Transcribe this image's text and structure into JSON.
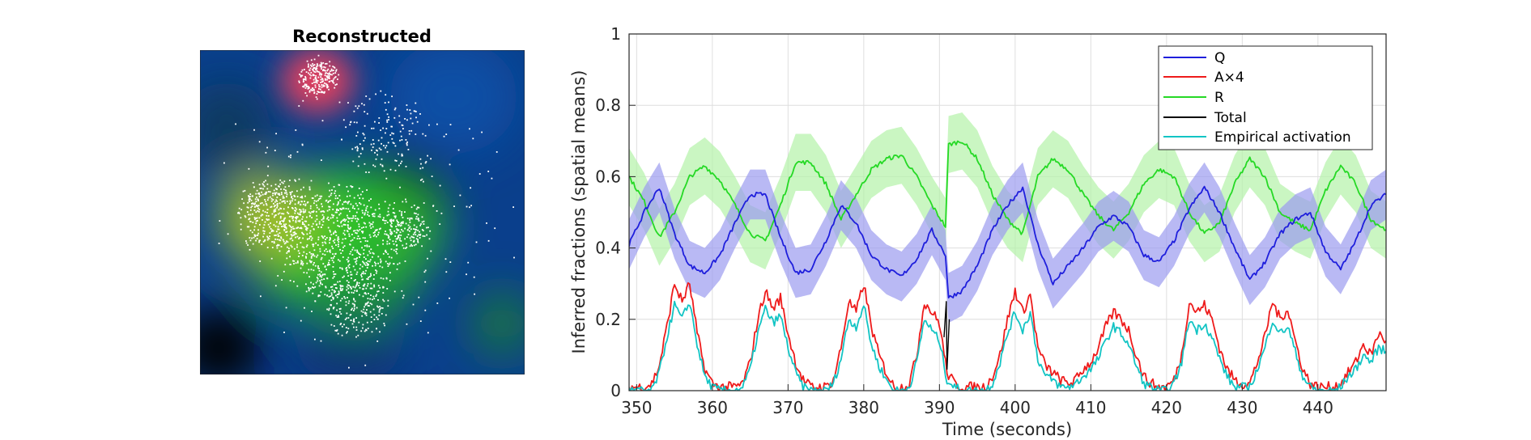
{
  "colors": {
    "Q": "#1f1fdc",
    "Q_band": "#9b9bf0",
    "A": "#ee1b1b",
    "R": "#25d925",
    "R_band": "#b4f2a8",
    "Total": "#000000",
    "Empirical": "#12c4c4"
  },
  "chart_data": [
    {
      "type": "heatmap",
      "title": "Reconstructed",
      "description_colors": [
        "red-pink blob at top",
        "yellow-green body",
        "green mass",
        "blue background",
        "white scattered points"
      ]
    },
    {
      "type": "line",
      "title": "",
      "xlabel": "Time (seconds)",
      "ylabel": "Inferred fractions (spatial means)",
      "xlim": [
        349,
        449
      ],
      "ylim": [
        0,
        1
      ],
      "xticks": [
        "350",
        "360",
        "370",
        "380",
        "390",
        "400",
        "410",
        "420",
        "430",
        "440"
      ],
      "yticks": [
        "0",
        "0.2",
        "0.4",
        "0.6",
        "0.8",
        "1"
      ],
      "grid": true,
      "legend_position": "top-right",
      "legend": [
        "Q",
        "A×4",
        "R",
        "Total",
        "Empirical activation"
      ],
      "series": [
        {
          "name": "Q",
          "x": [
            349,
            351,
            353,
            355,
            357,
            359,
            361,
            363,
            365,
            367,
            369,
            371,
            373,
            375,
            377,
            379,
            381,
            383,
            385,
            387,
            389,
            390.8,
            391.2,
            393,
            395,
            397,
            399,
            401,
            403,
            405,
            407,
            409,
            411,
            413,
            415,
            417,
            419,
            421,
            423,
            425,
            427,
            429,
            431,
            433,
            435,
            437,
            439,
            441,
            443,
            445,
            447,
            449
          ],
          "values": [
            0.41,
            0.5,
            0.57,
            0.44,
            0.35,
            0.33,
            0.38,
            0.47,
            0.55,
            0.55,
            0.43,
            0.33,
            0.34,
            0.42,
            0.52,
            0.47,
            0.38,
            0.34,
            0.32,
            0.37,
            0.45,
            0.38,
            0.26,
            0.28,
            0.35,
            0.45,
            0.52,
            0.57,
            0.41,
            0.3,
            0.35,
            0.4,
            0.46,
            0.49,
            0.46,
            0.38,
            0.36,
            0.42,
            0.51,
            0.57,
            0.5,
            0.4,
            0.31,
            0.36,
            0.44,
            0.48,
            0.5,
            0.39,
            0.34,
            0.42,
            0.52,
            0.55
          ],
          "band_halfwidth": 0.07
        },
        {
          "name": "R",
          "x": [
            349,
            351,
            353,
            355,
            357,
            359,
            361,
            363,
            365,
            367,
            369,
            371,
            373,
            375,
            377,
            379,
            381,
            383,
            385,
            387,
            389,
            390.8,
            391.2,
            393,
            395,
            397,
            399,
            401,
            403,
            405,
            407,
            409,
            411,
            413,
            415,
            417,
            419,
            421,
            423,
            425,
            427,
            429,
            431,
            433,
            435,
            437,
            439,
            441,
            443,
            445,
            447,
            449
          ],
          "values": [
            0.6,
            0.53,
            0.43,
            0.5,
            0.6,
            0.63,
            0.59,
            0.52,
            0.44,
            0.42,
            0.52,
            0.64,
            0.64,
            0.58,
            0.48,
            0.55,
            0.62,
            0.65,
            0.66,
            0.6,
            0.52,
            0.46,
            0.69,
            0.7,
            0.65,
            0.55,
            0.48,
            0.44,
            0.6,
            0.65,
            0.62,
            0.55,
            0.49,
            0.45,
            0.5,
            0.58,
            0.62,
            0.6,
            0.5,
            0.44,
            0.47,
            0.58,
            0.65,
            0.6,
            0.5,
            0.47,
            0.45,
            0.56,
            0.63,
            0.58,
            0.48,
            0.45
          ],
          "band_halfwidth": 0.08
        },
        {
          "name": "A×4",
          "x": [
            349,
            351,
            352,
            353,
            354,
            355,
            356,
            357,
            358,
            359,
            360,
            361,
            362,
            363,
            364,
            365,
            366,
            367,
            368,
            369,
            370,
            371,
            372,
            373,
            374,
            375,
            376,
            377,
            378,
            379,
            380,
            381,
            382,
            383,
            384,
            385,
            386,
            387,
            388,
            389,
            390,
            391,
            392,
            393,
            394,
            395,
            396,
            397,
            398,
            399,
            400,
            401,
            402,
            403,
            404,
            405,
            406,
            407,
            408,
            409,
            410,
            411,
            412,
            413,
            414,
            415,
            416,
            417,
            418,
            419,
            420,
            421,
            422,
            423,
            424,
            425,
            426,
            427,
            428,
            429,
            430,
            431,
            432,
            433,
            434,
            435,
            436,
            437,
            438,
            439,
            440,
            441,
            442,
            443,
            444,
            445,
            446,
            447,
            448,
            449
          ],
          "values": [
            0.01,
            0.01,
            0.02,
            0.07,
            0.18,
            0.3,
            0.25,
            0.3,
            0.16,
            0.06,
            0.02,
            0.01,
            0.01,
            0.01,
            0.02,
            0.08,
            0.2,
            0.28,
            0.23,
            0.26,
            0.16,
            0.08,
            0.03,
            0.01,
            0.01,
            0.01,
            0.03,
            0.12,
            0.25,
            0.22,
            0.3,
            0.18,
            0.1,
            0.05,
            0.01,
            0.01,
            0.02,
            0.1,
            0.25,
            0.22,
            0.19,
            0.05,
            0.02,
            0.01,
            0.01,
            0.01,
            0.01,
            0.04,
            0.1,
            0.2,
            0.28,
            0.22,
            0.27,
            0.12,
            0.07,
            0.05,
            0.03,
            0.02,
            0.03,
            0.06,
            0.08,
            0.12,
            0.18,
            0.22,
            0.2,
            0.17,
            0.1,
            0.04,
            0.02,
            0.01,
            0.01,
            0.03,
            0.1,
            0.25,
            0.22,
            0.24,
            0.2,
            0.12,
            0.06,
            0.03,
            0.02,
            0.02,
            0.08,
            0.15,
            0.25,
            0.2,
            0.23,
            0.14,
            0.06,
            0.02,
            0.01,
            0.01,
            0.01,
            0.02,
            0.05,
            0.08,
            0.13,
            0.1,
            0.16,
            0.14
          ]
        },
        {
          "name": "Empirical activation",
          "x": [
            349,
            351,
            352,
            353,
            354,
            355,
            356,
            357,
            358,
            359,
            360,
            361,
            362,
            363,
            364,
            365,
            366,
            367,
            368,
            369,
            370,
            371,
            372,
            373,
            374,
            375,
            376,
            377,
            378,
            379,
            380,
            381,
            382,
            383,
            384,
            385,
            386,
            387,
            388,
            389,
            390,
            391,
            392,
            393,
            394,
            395,
            396,
            397,
            398,
            399,
            400,
            401,
            402,
            403,
            404,
            405,
            406,
            407,
            408,
            409,
            410,
            411,
            412,
            413,
            414,
            415,
            416,
            417,
            418,
            419,
            420,
            421,
            422,
            423,
            424,
            425,
            426,
            427,
            428,
            429,
            430,
            431,
            432,
            433,
            434,
            435,
            436,
            437,
            438,
            439,
            440,
            441,
            442,
            443,
            444,
            445,
            446,
            447,
            448,
            449
          ],
          "values": [
            0.0,
            0.0,
            0.0,
            0.05,
            0.15,
            0.24,
            0.2,
            0.25,
            0.13,
            0.04,
            0.01,
            0.0,
            0.0,
            0.0,
            0.01,
            0.06,
            0.16,
            0.23,
            0.19,
            0.21,
            0.12,
            0.05,
            0.01,
            0.0,
            0.0,
            0.0,
            0.02,
            0.09,
            0.2,
            0.18,
            0.24,
            0.13,
            0.07,
            0.03,
            0.0,
            0.0,
            0.01,
            0.08,
            0.2,
            0.17,
            0.14,
            0.03,
            0.01,
            0.0,
            0.0,
            0.0,
            0.0,
            0.02,
            0.08,
            0.16,
            0.22,
            0.17,
            0.22,
            0.09,
            0.04,
            0.03,
            0.01,
            0.01,
            0.02,
            0.04,
            0.06,
            0.09,
            0.14,
            0.18,
            0.16,
            0.13,
            0.07,
            0.02,
            0.01,
            0.0,
            0.0,
            0.02,
            0.08,
            0.2,
            0.17,
            0.19,
            0.15,
            0.09,
            0.04,
            0.01,
            0.01,
            0.01,
            0.06,
            0.12,
            0.2,
            0.16,
            0.18,
            0.11,
            0.04,
            0.01,
            0.0,
            0.0,
            0.0,
            0.01,
            0.04,
            0.06,
            0.1,
            0.08,
            0.12,
            0.11
          ]
        },
        {
          "name": "Total",
          "x": [
            390.6,
            390.9,
            391.0,
            391.3
          ],
          "values": [
            0.15,
            0.25,
            0.06,
            0.2
          ]
        }
      ]
    }
  ]
}
